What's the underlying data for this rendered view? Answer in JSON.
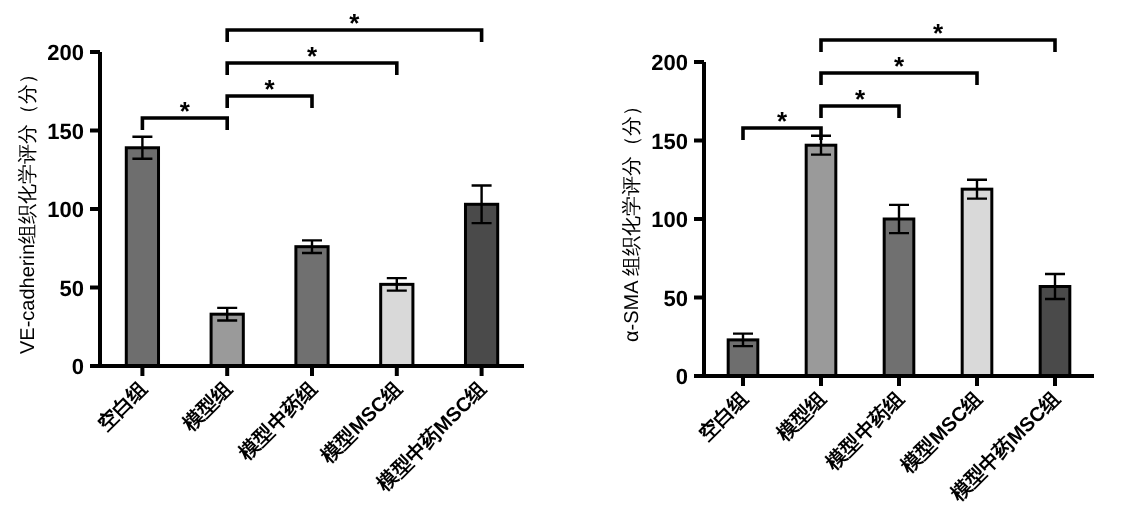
{
  "chart_data": [
    {
      "type": "bar",
      "ylabel": "VE-cadherin组织化学评分（分）",
      "categories": [
        "空白组",
        "模型组",
        "模型中药组",
        "模型MSC组",
        "模型中药MSC组"
      ],
      "values": [
        139,
        33,
        76,
        52,
        103
      ],
      "errors": [
        7,
        4,
        4,
        4,
        12
      ],
      "colors": [
        "#6e6e6e",
        "#9a9a9a",
        "#707070",
        "#d9d9d9",
        "#4a4a4a"
      ],
      "ylim": [
        0,
        200
      ],
      "yticks": [
        0,
        50,
        100,
        150,
        200
      ],
      "annotations": [
        "*",
        "*",
        "*",
        "*"
      ]
    },
    {
      "type": "bar",
      "ylabel": "α-SMA 组织化学评分（分）",
      "categories": [
        "空白组",
        "模型组",
        "模型中药组",
        "模型MSC组",
        "模型中药MSC组"
      ],
      "values": [
        23,
        147,
        100,
        119,
        57
      ],
      "errors": [
        4,
        6,
        9,
        6,
        8
      ],
      "colors": [
        "#6e6e6e",
        "#9a9a9a",
        "#707070",
        "#d9d9d9",
        "#4a4a4a"
      ],
      "ylim": [
        0,
        200
      ],
      "yticks": [
        0,
        50,
        100,
        150,
        200
      ],
      "annotations": [
        "*",
        "*",
        "*",
        "*"
      ]
    }
  ]
}
